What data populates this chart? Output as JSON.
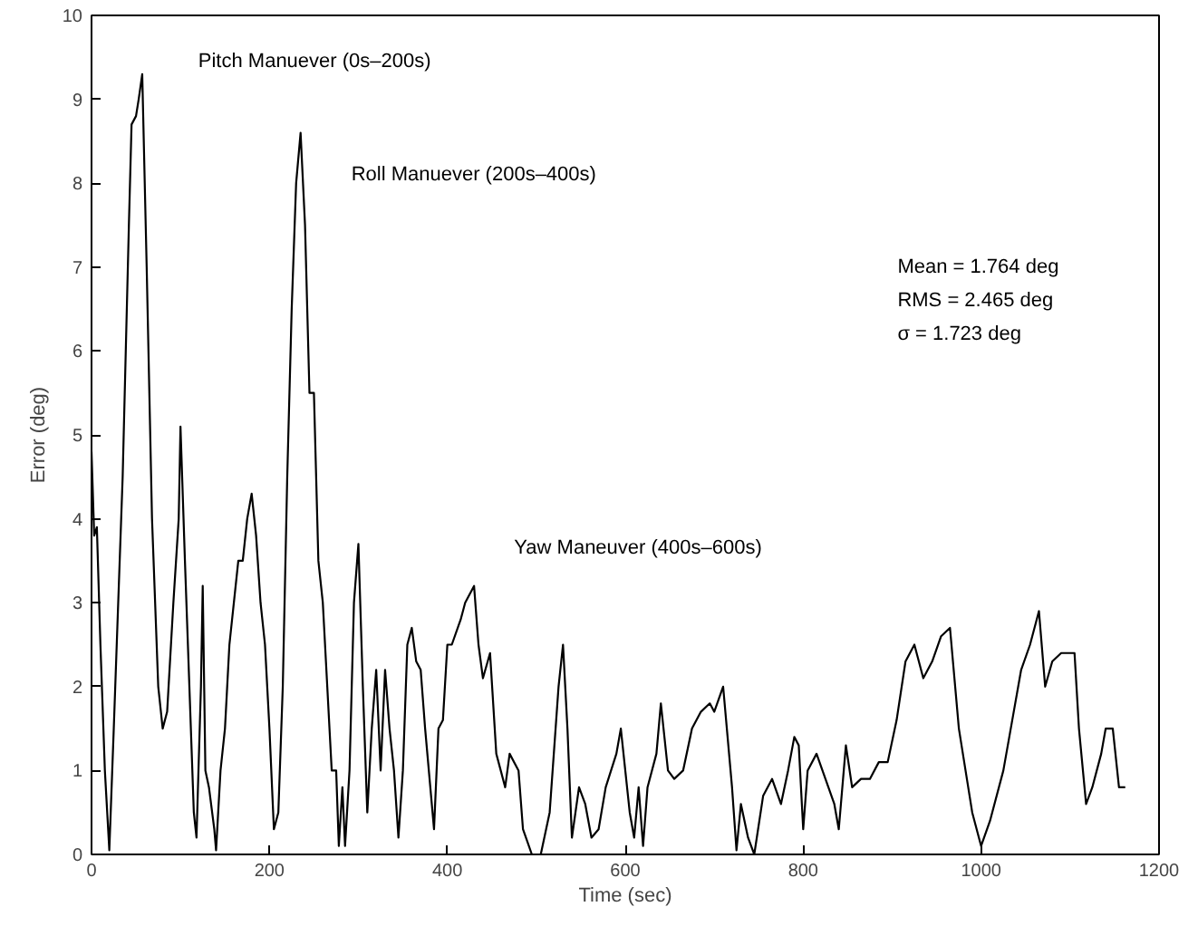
{
  "chart_data": {
    "type": "line",
    "xlabel": "Time (sec)",
    "ylabel": "Error (deg)",
    "xlim": [
      0,
      1200
    ],
    "ylim": [
      0,
      10
    ],
    "xticks": [
      0,
      200,
      400,
      600,
      800,
      1000,
      1200
    ],
    "yticks": [
      0,
      1,
      2,
      3,
      4,
      5,
      6,
      7,
      8,
      9,
      10
    ],
    "grid": false,
    "marker": "none",
    "line_style": "solid",
    "annotations": [
      "Pitch Manuever (0s–200s)",
      "Roll Manuever (200s–400s)",
      "Yaw Maneuver (400s–600s)",
      "Mean = 1.764 deg",
      "RMS = 2.465 deg",
      "σ = 1.723 deg"
    ],
    "series": [
      {
        "color": "#000000",
        "x": [
          0,
          3,
          6,
          10,
          15,
          20,
          25,
          35,
          42,
          45,
          50,
          53,
          57,
          62,
          68,
          75,
          80,
          85,
          92,
          98,
          100,
          105,
          110,
          115,
          118,
          123,
          125,
          128,
          132,
          138,
          140,
          145,
          150,
          155,
          160,
          165,
          170,
          175,
          180,
          185,
          190,
          195,
          200,
          205,
          210,
          215,
          220,
          225,
          230,
          235,
          240,
          245,
          250,
          255,
          260,
          265,
          270,
          275,
          278,
          282,
          285,
          290,
          295,
          300,
          305,
          310,
          315,
          320,
          325,
          330,
          335,
          340,
          345,
          350,
          355,
          360,
          365,
          370,
          375,
          385,
          390,
          395,
          400,
          405,
          415,
          420,
          430,
          435,
          440,
          448,
          455,
          460,
          465,
          470,
          480,
          485,
          495,
          505,
          515,
          525,
          530,
          535,
          540,
          548,
          555,
          562,
          570,
          578,
          590,
          595,
          605,
          610,
          615,
          620,
          625,
          635,
          640,
          648,
          655,
          665,
          675,
          685,
          695,
          700,
          710,
          720,
          725,
          730,
          738,
          745,
          755,
          765,
          775,
          783,
          790,
          795,
          800,
          805,
          815,
          825,
          835,
          840,
          848,
          855,
          865,
          875,
          885,
          895,
          905,
          915,
          925,
          935,
          945,
          955,
          965,
          975,
          990,
          1000,
          1010,
          1025,
          1035,
          1045,
          1055,
          1065,
          1072,
          1080,
          1090,
          1105,
          1110,
          1118,
          1125,
          1135,
          1140,
          1148,
          1155,
          1162
        ],
        "values": [
          4.8,
          3.8,
          3.9,
          2.5,
          1.0,
          0.05,
          1.5,
          4.5,
          7.5,
          8.7,
          8.8,
          9.0,
          9.3,
          7.0,
          4.0,
          2.0,
          1.5,
          1.7,
          3.0,
          4.0,
          5.1,
          3.5,
          2.0,
          0.5,
          0.2,
          2.0,
          3.2,
          1.0,
          0.8,
          0.3,
          0.05,
          1.0,
          1.5,
          2.5,
          3.0,
          3.5,
          3.5,
          4.0,
          4.3,
          3.8,
          3.0,
          2.5,
          1.5,
          0.3,
          0.5,
          2.0,
          4.5,
          6.5,
          8.0,
          8.6,
          7.5,
          5.5,
          5.5,
          3.5,
          3.0,
          2.0,
          1.0,
          1.0,
          0.1,
          0.8,
          0.1,
          1.0,
          3.0,
          3.7,
          2.0,
          0.5,
          1.5,
          2.2,
          1.0,
          2.2,
          1.5,
          1.0,
          0.2,
          1.0,
          2.5,
          2.7,
          2.3,
          2.2,
          1.5,
          0.3,
          1.5,
          1.6,
          2.5,
          2.5,
          2.8,
          3.0,
          3.2,
          2.5,
          2.1,
          2.4,
          1.2,
          1.0,
          0.8,
          1.2,
          1.0,
          0.3,
          0.0,
          0.0,
          0.5,
          2.0,
          2.5,
          1.5,
          0.2,
          0.8,
          0.6,
          0.2,
          0.3,
          0.8,
          1.2,
          1.5,
          0.5,
          0.2,
          0.8,
          0.1,
          0.8,
          1.2,
          1.8,
          1.0,
          0.9,
          1.0,
          1.5,
          1.7,
          1.8,
          1.7,
          2.0,
          0.8,
          0.05,
          0.6,
          0.2,
          0.0,
          0.7,
          0.9,
          0.6,
          1.0,
          1.4,
          1.3,
          0.3,
          1.0,
          1.2,
          0.9,
          0.6,
          0.3,
          1.3,
          0.8,
          0.9,
          0.9,
          1.1,
          1.1,
          1.6,
          2.3,
          2.5,
          2.1,
          2.3,
          2.6,
          2.7,
          1.5,
          0.5,
          0.1,
          0.4,
          1.0,
          1.6,
          2.2,
          2.5,
          2.9,
          2.0,
          2.3,
          2.4,
          2.4,
          1.5,
          0.6,
          0.8,
          1.2,
          1.5,
          1.5,
          0.8,
          0.8
        ]
      }
    ]
  }
}
